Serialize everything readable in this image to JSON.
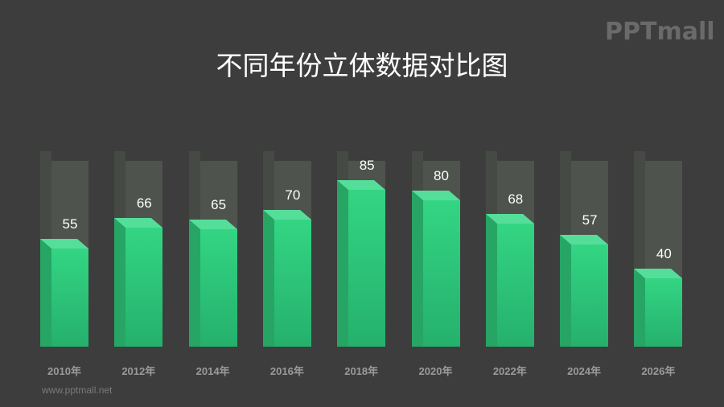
{
  "header": {
    "title": "不同年份立体数据对比图",
    "logo": "PPTmall"
  },
  "footer": {
    "url": "www.pptmall.net"
  },
  "colors": {
    "background": "#3d3d3d",
    "bar_fill": "#2ecc7e",
    "bar_ghost": "#4e534d",
    "text": "#ffffff",
    "axis_label": "#9a9a9a"
  },
  "chart_data": {
    "type": "bar",
    "title": "不同年份立体数据对比图",
    "categories": [
      "2010年",
      "2012年",
      "2014年",
      "2016年",
      "2018年",
      "2020年",
      "2022年",
      "2024年",
      "2026年"
    ],
    "values": [
      55,
      66,
      65,
      70,
      85,
      80,
      68,
      57,
      40
    ],
    "xlabel": "",
    "ylabel": "",
    "ylim": [
      0,
      100
    ],
    "grid": false,
    "legend": null,
    "style": "3d-column with 100% background ghost column"
  }
}
